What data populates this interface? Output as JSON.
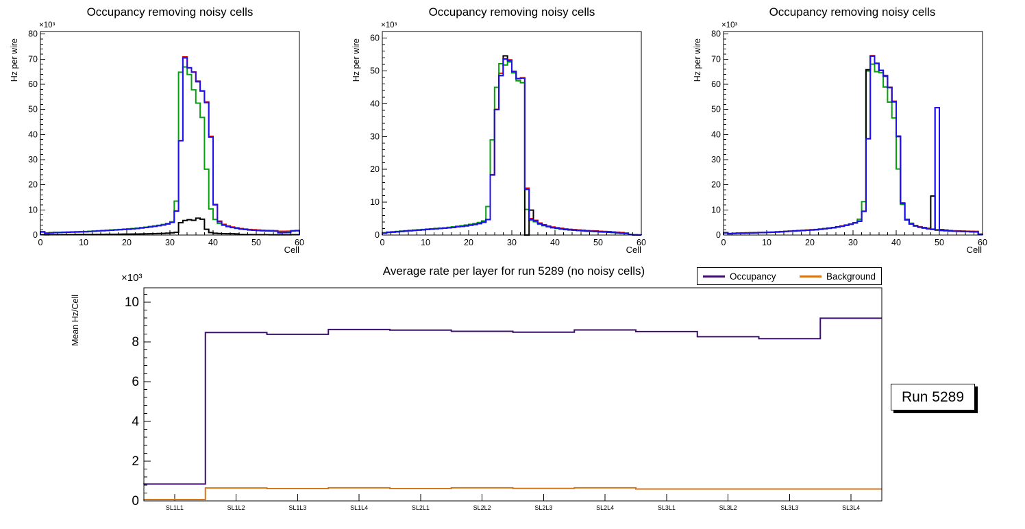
{
  "colors": {
    "black": "#000000",
    "red": "#e01408",
    "green": "#07a00e",
    "blue": "#1d12ef",
    "occupancy": "#3d0e6b",
    "background": "#d4771c",
    "frame": "#000000",
    "canvas_bg": "#ffffff"
  },
  "run_box": {
    "label": "Run 5289"
  },
  "chart_data": [
    {
      "id": "occupancy-hist-1",
      "type": "step-histogram",
      "title": "Occupancy removing noisy cells",
      "xlabel": "Cell",
      "ylabel": "Hz per wire",
      "y_exponent": "×10³",
      "xlim": [
        0,
        60
      ],
      "ylim": [
        0,
        81
      ],
      "xticks": [
        0,
        10,
        20,
        30,
        40,
        50,
        60
      ],
      "yticks": [
        0,
        10,
        20,
        30,
        40,
        50,
        60,
        70,
        80
      ],
      "grid": false,
      "series": [
        {
          "name": "red",
          "color_key": "red",
          "values": [
            1.35,
            0.85,
            1.0,
            1.1,
            1.1,
            1.15,
            1.2,
            1.25,
            1.3,
            1.3,
            1.35,
            1.45,
            1.55,
            1.65,
            1.75,
            1.85,
            1.95,
            2.05,
            2.15,
            2.25,
            2.35,
            2.5,
            2.65,
            2.85,
            3.05,
            3.25,
            3.5,
            3.75,
            4.05,
            4.45,
            5.05,
            9.6,
            37.6,
            70.9,
            66.6,
            64.9,
            61.3,
            57.4,
            53.0,
            39.3,
            12.2,
            5.55,
            4.25,
            3.65,
            3.2,
            2.9,
            2.6,
            2.4,
            2.2,
            2.1,
            2.0,
            1.9,
            1.85,
            1.8,
            1.75,
            1.5,
            1.5,
            1.55,
            1.75,
            1.85
          ]
        },
        {
          "name": "green",
          "color_key": "green",
          "values": [
            1.3,
            0.8,
            0.95,
            1.05,
            1.1,
            1.1,
            1.15,
            1.2,
            1.3,
            1.35,
            1.4,
            1.5,
            1.6,
            1.7,
            1.8,
            1.9,
            2.0,
            2.1,
            2.2,
            2.35,
            2.5,
            2.6,
            2.75,
            2.95,
            3.15,
            3.4,
            3.6,
            3.9,
            4.2,
            4.6,
            5.3,
            13.5,
            64.8,
            66.9,
            63.9,
            57.8,
            52.5,
            46.8,
            26.2,
            10.4,
            6.2,
            4.6,
            3.9,
            3.35,
            2.95,
            2.65,
            2.4,
            2.2,
            2.0,
            1.9,
            1.8,
            1.7,
            1.65,
            1.6,
            1.55,
            1.0,
            1.0,
            1.05,
            1.6,
            1.7
          ]
        },
        {
          "name": "black",
          "color_key": "black",
          "values": [
            0.15,
            0.1,
            0.12,
            0.14,
            0.15,
            0.16,
            0.17,
            0.18,
            0.19,
            0.2,
            0.2,
            0.22,
            0.24,
            0.26,
            0.28,
            0.3,
            0.3,
            0.32,
            0.34,
            0.36,
            0.38,
            0.4,
            0.42,
            0.45,
            0.48,
            0.5,
            0.55,
            0.6,
            0.65,
            0.75,
            0.9,
            1.1,
            4.9,
            5.8,
            6.1,
            5.85,
            6.7,
            6.3,
            2.3,
            1.0,
            0.7,
            0.6,
            0.55,
            0.5,
            0.5,
            0.45,
            0.2,
            0.18,
            0.16,
            0.15,
            0.14,
            0.13,
            0.12,
            0.11,
            0.1,
            0.1,
            0.1,
            0.1,
            0.12,
            0.12
          ]
        },
        {
          "name": "blue",
          "color_key": "blue",
          "values": [
            1.2,
            0.7,
            0.85,
            0.95,
            1.0,
            1.05,
            1.1,
            1.15,
            1.2,
            1.25,
            1.3,
            1.4,
            1.5,
            1.6,
            1.7,
            1.8,
            1.9,
            2.0,
            2.1,
            2.2,
            2.3,
            2.45,
            2.6,
            2.8,
            3.0,
            3.2,
            3.45,
            3.7,
            4.0,
            4.4,
            5.0,
            9.5,
            37.5,
            70.5,
            66.5,
            64.8,
            61.0,
            57.3,
            52.7,
            39.0,
            12.0,
            5.3,
            4.0,
            3.4,
            3.0,
            2.7,
            2.4,
            2.2,
            2.0,
            1.9,
            1.8,
            1.7,
            1.65,
            1.6,
            1.55,
            0.9,
            0.95,
            1.0,
            1.6,
            1.7
          ]
        }
      ]
    },
    {
      "id": "occupancy-hist-2",
      "type": "step-histogram",
      "title": "Occupancy removing noisy cells",
      "xlabel": "Cell",
      "ylabel": "Hz per wire",
      "y_exponent": "×10³",
      "xlim": [
        0,
        60
      ],
      "ylim": [
        0,
        62
      ],
      "xticks": [
        0,
        10,
        20,
        30,
        40,
        50,
        60
      ],
      "yticks": [
        0,
        10,
        20,
        30,
        40,
        50,
        60
      ],
      "grid": false,
      "series": [
        {
          "name": "red",
          "color_key": "red",
          "values": [
            0.65,
            0.85,
            0.95,
            1.05,
            1.15,
            1.25,
            1.35,
            1.45,
            1.55,
            1.65,
            1.75,
            1.85,
            1.95,
            2.05,
            2.15,
            2.25,
            2.35,
            2.55,
            2.65,
            2.85,
            3.05,
            3.25,
            3.55,
            3.95,
            4.75,
            18.4,
            38.3,
            49.3,
            53.7,
            53.4,
            49.9,
            47.7,
            47.9,
            14.3,
            5.0,
            4.5,
            3.65,
            3.15,
            2.75,
            2.45,
            2.25,
            2.05,
            1.85,
            1.75,
            1.65,
            1.55,
            1.45,
            1.35,
            1.3,
            1.25,
            1.15,
            1.1,
            1.05,
            0.95,
            0.85,
            0.75,
            0.6,
            0.2,
            0.07,
            0.03
          ]
        },
        {
          "name": "green",
          "color_key": "green",
          "values": [
            0.7,
            0.9,
            1.0,
            1.1,
            1.2,
            1.3,
            1.4,
            1.5,
            1.6,
            1.7,
            1.8,
            1.9,
            2.0,
            2.1,
            2.2,
            2.35,
            2.5,
            2.7,
            2.85,
            3.05,
            3.25,
            3.5,
            3.8,
            4.3,
            8.7,
            29.0,
            45.0,
            52.2,
            51.8,
            52.7,
            49.4,
            47.0,
            46.4,
            7.8,
            4.5,
            4.05,
            3.3,
            2.85,
            2.5,
            2.2,
            2.0,
            1.8,
            1.65,
            1.55,
            1.45,
            1.35,
            1.25,
            1.15,
            1.1,
            1.05,
            0.95,
            0.9,
            0.85,
            0.75,
            0.65,
            0.55,
            0.45,
            0.12,
            0.04,
            0.02
          ]
        },
        {
          "name": "black",
          "color_key": "black",
          "values": [
            0.6,
            0.8,
            0.9,
            1.0,
            1.1,
            1.2,
            1.3,
            1.4,
            1.5,
            1.6,
            1.7,
            1.8,
            1.9,
            2.0,
            2.1,
            2.2,
            2.3,
            2.5,
            2.6,
            2.8,
            3.0,
            3.2,
            3.5,
            3.9,
            4.7,
            18.3,
            38.2,
            48.6,
            54.6,
            53.1,
            49.8,
            47.6,
            47.8,
            0.0,
            7.6,
            4.3,
            3.5,
            3.0,
            2.6,
            2.3,
            2.1,
            1.9,
            1.7,
            1.6,
            1.5,
            1.4,
            1.3,
            1.2,
            1.15,
            1.1,
            1.0,
            0.95,
            0.9,
            0.8,
            0.7,
            0.6,
            0.5,
            0.15,
            0.05,
            0.02
          ]
        },
        {
          "name": "blue",
          "color_key": "blue",
          "values": [
            0.6,
            0.8,
            0.9,
            1.0,
            1.1,
            1.2,
            1.3,
            1.4,
            1.5,
            1.6,
            1.7,
            1.8,
            1.9,
            2.0,
            2.1,
            2.2,
            2.3,
            2.5,
            2.6,
            2.8,
            3.0,
            3.2,
            3.5,
            3.9,
            4.7,
            18.3,
            38.2,
            48.6,
            53.6,
            53.1,
            49.8,
            47.6,
            47.8,
            13.9,
            4.8,
            4.3,
            3.5,
            3.0,
            2.6,
            2.3,
            2.1,
            1.9,
            1.7,
            1.6,
            1.5,
            1.4,
            1.3,
            1.2,
            1.15,
            1.1,
            1.0,
            0.95,
            0.9,
            0.8,
            0.7,
            0.6,
            0.5,
            0.15,
            0.05,
            0.02
          ]
        }
      ]
    },
    {
      "id": "occupancy-hist-3",
      "type": "step-histogram",
      "title": "Occupancy removing noisy cells",
      "xlabel": "Cell",
      "ylabel": "Hz per wire",
      "y_exponent": "×10³",
      "xlim": [
        0,
        60
      ],
      "ylim": [
        0,
        81
      ],
      "xticks": [
        0,
        10,
        20,
        30,
        40,
        50,
        60
      ],
      "yticks": [
        0,
        10,
        20,
        30,
        40,
        50,
        60,
        70,
        80
      ],
      "grid": false,
      "series": [
        {
          "name": "red",
          "color_key": "red",
          "values": [
            1.0,
            0.6,
            0.7,
            0.8,
            0.85,
            0.9,
            0.95,
            1.0,
            1.05,
            1.1,
            1.15,
            1.2,
            1.3,
            1.4,
            1.5,
            1.6,
            1.7,
            1.8,
            1.9,
            2.0,
            2.1,
            2.2,
            2.4,
            2.6,
            2.8,
            3.0,
            3.3,
            3.6,
            4.0,
            4.4,
            4.9,
            5.6,
            9.5,
            38.4,
            71.4,
            68.4,
            65.6,
            63.5,
            58.8,
            53.3,
            39.4,
            12.8,
            6.2,
            4.6,
            3.8,
            3.3,
            3.0,
            2.7,
            2.4,
            50.7,
            2.0,
            1.9,
            1.8,
            1.7,
            1.65,
            1.6,
            1.55,
            1.5,
            1.45,
            0.35
          ]
        },
        {
          "name": "green",
          "color_key": "green",
          "values": [
            0.95,
            0.55,
            0.65,
            0.75,
            0.8,
            0.85,
            0.9,
            0.95,
            1.0,
            1.05,
            1.1,
            1.15,
            1.25,
            1.35,
            1.45,
            1.55,
            1.65,
            1.75,
            1.85,
            1.95,
            2.05,
            2.15,
            2.35,
            2.55,
            2.75,
            2.95,
            3.25,
            3.55,
            3.95,
            4.35,
            4.85,
            6.3,
            13.3,
            65.3,
            68.0,
            65.0,
            64.6,
            58.9,
            52.9,
            46.6,
            26.3,
            12.2,
            6.3,
            4.7,
            3.7,
            3.15,
            2.85,
            2.55,
            2.25,
            2.0,
            1.85,
            1.75,
            1.65,
            1.55,
            1.5,
            1.45,
            1.4,
            1.35,
            1.3,
            0.32
          ]
        },
        {
          "name": "black",
          "color_key": "black",
          "values": [
            0.9,
            0.5,
            0.6,
            0.7,
            0.75,
            0.8,
            0.85,
            0.9,
            0.95,
            1.0,
            1.05,
            1.1,
            1.2,
            1.3,
            1.4,
            1.5,
            1.6,
            1.7,
            1.8,
            1.9,
            2.0,
            2.1,
            2.3,
            2.5,
            2.7,
            2.9,
            3.2,
            3.5,
            3.9,
            4.3,
            4.8,
            5.5,
            9.4,
            65.8,
            71.2,
            68.3,
            65.5,
            63.2,
            58.7,
            53.0,
            39.2,
            12.6,
            6.0,
            4.4,
            3.6,
            3.1,
            2.8,
            2.5,
            15.5,
            2.0,
            2.1,
            1.95,
            1.6,
            1.5,
            1.45,
            1.4,
            1.35,
            1.3,
            1.25,
            0.3
          ]
        },
        {
          "name": "blue",
          "color_key": "blue",
          "values": [
            0.9,
            0.5,
            0.6,
            0.7,
            0.75,
            0.8,
            0.85,
            0.9,
            0.95,
            1.0,
            1.05,
            1.1,
            1.2,
            1.3,
            1.4,
            1.5,
            1.6,
            1.7,
            1.8,
            1.9,
            2.0,
            2.1,
            2.3,
            2.5,
            2.7,
            2.9,
            3.2,
            3.5,
            3.9,
            4.3,
            4.8,
            5.5,
            9.4,
            38.3,
            71.2,
            68.3,
            65.5,
            63.2,
            58.7,
            53.0,
            39.2,
            12.6,
            6.0,
            4.4,
            3.6,
            3.1,
            2.8,
            2.5,
            2.2,
            50.7,
            1.8,
            1.7,
            1.6,
            1.5,
            1.45,
            1.4,
            1.35,
            1.3,
            1.25,
            0.3
          ]
        }
      ]
    },
    {
      "id": "avg-rate-per-layer",
      "type": "step-line",
      "title": "Average rate per layer for run 5289 (no noisy cells)",
      "ylabel": "Mean Hz/Cell",
      "y_exponent": "×10³",
      "categories": [
        "SL1L1",
        "SL1L2",
        "SL1L3",
        "SL1L4",
        "SL2L1",
        "SL2L2",
        "SL2L3",
        "SL2L4",
        "SL3L1",
        "SL3L2",
        "SL3L3",
        "SL3L4"
      ],
      "ylim": [
        0,
        10.72
      ],
      "yticks": [
        0,
        2,
        4,
        6,
        8,
        10
      ],
      "grid": false,
      "legend": [
        {
          "label": "Occupancy",
          "color_key": "occupancy"
        },
        {
          "label": "Background",
          "color_key": "background"
        }
      ],
      "series": [
        {
          "name": "Occupancy",
          "color_key": "occupancy",
          "values": [
            0.85,
            8.47,
            8.38,
            8.62,
            8.59,
            8.53,
            8.49,
            8.6,
            8.52,
            8.26,
            8.16,
            9.19
          ]
        },
        {
          "name": "Background",
          "color_key": "background",
          "values": [
            0.07,
            0.65,
            0.62,
            0.66,
            0.62,
            0.66,
            0.63,
            0.66,
            0.6,
            0.6,
            0.6,
            0.6
          ]
        }
      ]
    }
  ]
}
